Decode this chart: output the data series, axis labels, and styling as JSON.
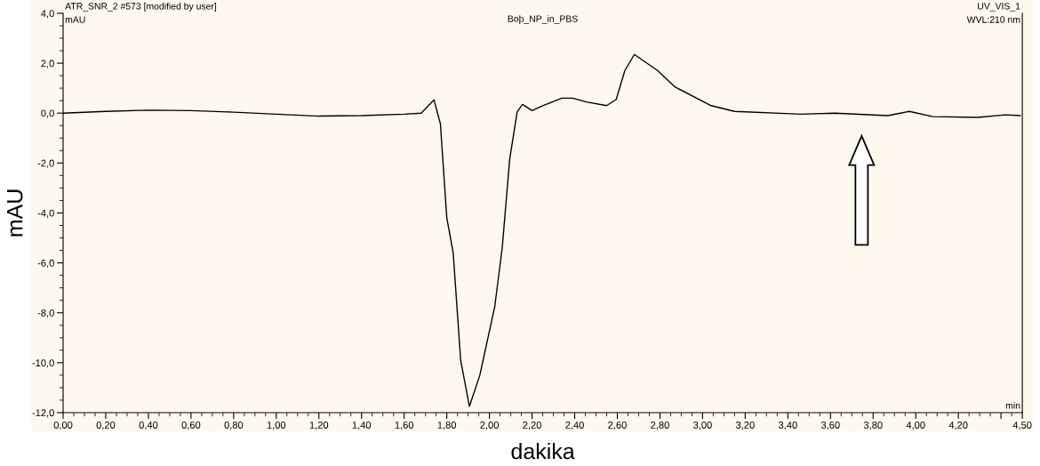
{
  "chart_data": {
    "type": "line",
    "title": "Boþ_NP_in_PBS",
    "xlabel": "dakika",
    "ylabel": "mAU",
    "annotations": [
      "ATR_SNR_2 #573 [modified by user]",
      "mAU",
      "UV_VIS_1",
      "WVL:210 nm",
      "min"
    ],
    "series": [
      {
        "color": "#000000",
        "x": [
          0.0,
          0.2,
          0.4,
          0.6,
          0.8,
          1.0,
          1.2,
          1.4,
          1.6,
          1.68,
          1.74,
          1.77,
          1.8,
          1.83,
          1.865,
          1.906,
          1.955,
          2.025,
          2.06,
          2.095,
          2.13,
          2.155,
          2.2,
          2.25,
          2.34,
          2.39,
          2.455,
          2.55,
          2.595,
          2.635,
          2.68,
          2.79,
          2.87,
          3.04,
          3.15,
          3.46,
          3.62,
          3.87,
          3.97,
          4.08,
          4.29,
          4.42,
          4.49
        ],
        "values": [
          0.0,
          0.07,
          0.12,
          0.1,
          0.04,
          -0.04,
          -0.12,
          -0.1,
          -0.04,
          0.0,
          0.53,
          -0.43,
          -4.2,
          -5.6,
          -9.9,
          -11.75,
          -10.5,
          -7.75,
          -5.4,
          -1.85,
          0.05,
          0.35,
          0.1,
          0.3,
          0.6,
          0.6,
          0.45,
          0.3,
          0.55,
          1.7,
          2.35,
          1.7,
          1.05,
          0.3,
          0.07,
          -0.04,
          0.0,
          -0.1,
          0.07,
          -0.14,
          -0.17,
          -0.07,
          -0.1
        ]
      }
    ],
    "xlim": [
      0,
      4.5
    ],
    "xticks": [
      {
        "value": 0,
        "label": "0,00"
      },
      {
        "value": 0.2,
        "label": "0,20"
      },
      {
        "value": 0.4,
        "label": "0,40"
      },
      {
        "value": 0.6,
        "label": "0,60"
      },
      {
        "value": 0.8,
        "label": "0,80"
      },
      {
        "value": 1.0,
        "label": "1,00"
      },
      {
        "value": 1.2,
        "label": "1,20"
      },
      {
        "value": 1.4,
        "label": "1,40"
      },
      {
        "value": 1.6,
        "label": "1,60"
      },
      {
        "value": 1.8,
        "label": "1,80"
      },
      {
        "value": 2.0,
        "label": "2,00"
      },
      {
        "value": 2.2,
        "label": "2,20"
      },
      {
        "value": 2.4,
        "label": "2,40"
      },
      {
        "value": 2.6,
        "label": "2,60"
      },
      {
        "value": 2.8,
        "label": "2,80"
      },
      {
        "value": 3.0,
        "label": "3,00"
      },
      {
        "value": 3.2,
        "label": "3,20"
      },
      {
        "value": 3.4,
        "label": "3,40"
      },
      {
        "value": 3.6,
        "label": "3,60"
      },
      {
        "value": 3.8,
        "label": "3,80"
      },
      {
        "value": 4.0,
        "label": "4,00"
      },
      {
        "value": 4.2,
        "label": "4,20"
      },
      {
        "value": 4.4,
        "label": null
      },
      {
        "value": 4.5,
        "label": "4,50"
      }
    ],
    "ylim": [
      -12,
      4
    ],
    "yticks": [
      {
        "value": -12,
        "label": "-12,0"
      },
      {
        "value": -10,
        "label": "-10,0"
      },
      {
        "value": -8,
        "label": "-8,0"
      },
      {
        "value": -6,
        "label": "-6,0"
      },
      {
        "value": -4,
        "label": "-4,0"
      },
      {
        "value": -2,
        "label": "-2,0"
      },
      {
        "value": 0,
        "label": "0,0"
      },
      {
        "value": 2,
        "label": "2,0"
      },
      {
        "value": 4,
        "label": "4,0"
      }
    ],
    "grid": false,
    "legend": false,
    "marker": "none",
    "line_style": "solid"
  }
}
